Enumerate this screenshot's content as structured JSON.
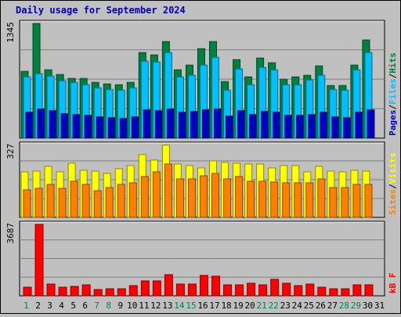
{
  "chart_data": [
    {
      "type": "bar",
      "panel": "hits-files-pages",
      "title": "Daily usage for September 2024",
      "ymax_label": "1345",
      "legend_labels": [
        "Pages",
        "Files",
        "Hits"
      ],
      "colors": {
        "hits": "#008040",
        "files": "#00c0ff",
        "pages": "#0000c0"
      },
      "categories": [
        "1",
        "2",
        "3",
        "4",
        "5",
        "6",
        "7",
        "8",
        "9",
        "10",
        "11",
        "12",
        "13",
        "14",
        "15",
        "16",
        "17",
        "18",
        "19",
        "20",
        "21",
        "22",
        "23",
        "24",
        "25",
        "26",
        "27",
        "28",
        "29",
        "30",
        "31"
      ],
      "series": [
        {
          "name": "Hits",
          "values": [
            780,
            1345,
            800,
            750,
            700,
            700,
            650,
            640,
            630,
            650,
            1000,
            980,
            1130,
            800,
            860,
            1050,
            1130,
            660,
            920,
            720,
            940,
            880,
            690,
            720,
            740,
            850,
            620,
            620,
            860,
            1150,
            0
          ]
        },
        {
          "name": "Files",
          "values": [
            720,
            760,
            730,
            670,
            650,
            630,
            590,
            570,
            560,
            590,
            900,
            890,
            1000,
            720,
            740,
            860,
            950,
            560,
            810,
            630,
            830,
            800,
            630,
            630,
            680,
            740,
            570,
            560,
            800,
            1000,
            0
          ]
        },
        {
          "name": "Pages",
          "values": [
            300,
            340,
            320,
            290,
            280,
            270,
            250,
            240,
            230,
            250,
            330,
            320,
            340,
            300,
            310,
            330,
            340,
            260,
            320,
            280,
            310,
            300,
            270,
            270,
            280,
            300,
            250,
            240,
            300,
            330,
            0
          ]
        }
      ]
    },
    {
      "type": "bar",
      "panel": "sites-visits",
      "ymax_label": "327",
      "legend_labels": [
        "Sites",
        "Visits"
      ],
      "colors": {
        "visits": "#ffff00",
        "sites": "#ff8000"
      },
      "categories": [
        "1",
        "2",
        "3",
        "4",
        "5",
        "6",
        "7",
        "8",
        "9",
        "10",
        "11",
        "12",
        "13",
        "14",
        "15",
        "16",
        "17",
        "18",
        "19",
        "20",
        "21",
        "22",
        "23",
        "24",
        "25",
        "26",
        "27",
        "28",
        "29",
        "30",
        "31"
      ],
      "series": [
        {
          "name": "Visits",
          "values": [
            205,
            210,
            230,
            205,
            245,
            215,
            210,
            200,
            220,
            235,
            285,
            260,
            327,
            240,
            235,
            225,
            255,
            250,
            245,
            240,
            240,
            225,
            235,
            235,
            205,
            230,
            210,
            205,
            215,
            210,
            0
          ]
        },
        {
          "name": "Sites",
          "values": [
            125,
            130,
            150,
            130,
            165,
            150,
            120,
            135,
            150,
            155,
            185,
            205,
            240,
            175,
            175,
            190,
            200,
            175,
            185,
            165,
            165,
            160,
            155,
            155,
            155,
            175,
            135,
            135,
            150,
            150,
            0
          ]
        }
      ]
    },
    {
      "type": "bar",
      "panel": "kbytes",
      "ymax_label": "3687",
      "legend_labels": [
        "kB F"
      ],
      "colors": {
        "kbytes": "#ff0000"
      },
      "categories": [
        "1",
        "2",
        "3",
        "4",
        "5",
        "6",
        "7",
        "8",
        "9",
        "10",
        "11",
        "12",
        "13",
        "14",
        "15",
        "16",
        "17",
        "18",
        "19",
        "20",
        "21",
        "22",
        "23",
        "24",
        "25",
        "26",
        "27",
        "28",
        "29",
        "30",
        "31"
      ],
      "series": [
        {
          "name": "kB F",
          "values": [
            440,
            3687,
            610,
            440,
            490,
            560,
            330,
            370,
            380,
            510,
            750,
            760,
            1100,
            590,
            600,
            1050,
            1000,
            570,
            580,
            630,
            570,
            860,
            630,
            520,
            610,
            430,
            370,
            380,
            570,
            550,
            0
          ]
        }
      ]
    }
  ],
  "x_axis": {
    "days": [
      "1",
      "2",
      "3",
      "4",
      "5",
      "6",
      "7",
      "8",
      "9",
      "10",
      "11",
      "12",
      "13",
      "14",
      "15",
      "16",
      "17",
      "18",
      "19",
      "20",
      "21",
      "22",
      "23",
      "24",
      "25",
      "26",
      "27",
      "28",
      "29",
      "30",
      "31"
    ],
    "weekend_days": [
      "1",
      "7",
      "8",
      "14",
      "15",
      "21",
      "22",
      "28",
      "29"
    ],
    "weekday_color": "#000000",
    "weekend_color": "#00805c"
  }
}
